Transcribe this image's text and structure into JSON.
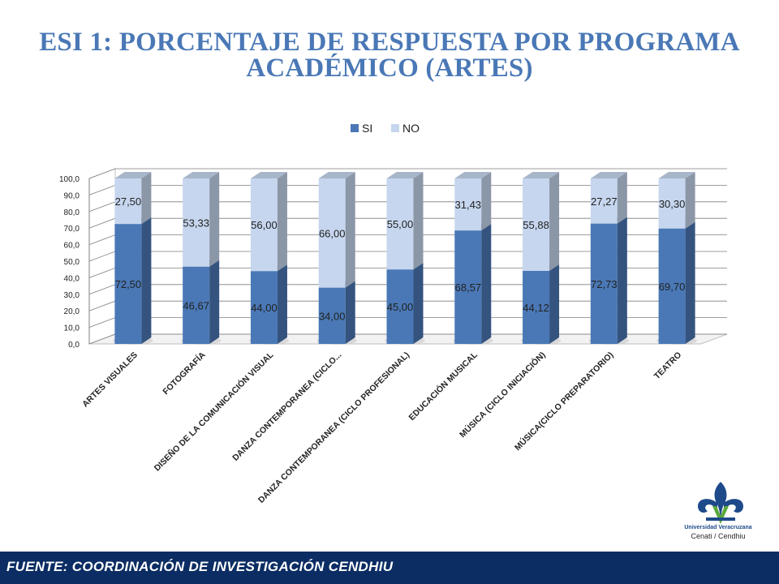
{
  "title": {
    "line1": "ESI  1: PORCENTAJE DE RESPUESTA POR PROGRAMA",
    "line2": "ACADÉMICO (ARTES)"
  },
  "footer": {
    "text": "FUENTE:  COORDINACIÓN DE   INVESTIGACIÓN CENDHIU"
  },
  "logo": {
    "name": "Universidad Veracruzana",
    "caption": "Cenati / Cendhiu",
    "icon": "fleur-de-lis-icon"
  },
  "colors": {
    "si": "#4a78b6",
    "no": "#c6d6ee",
    "title": "#4a78b6",
    "footer_bg": "#0b2d63"
  },
  "chart_data": {
    "type": "bar",
    "stacked": true,
    "three_d": true,
    "categories": [
      "ARTES VISUALES",
      "FOTOGRAFÍA",
      "DISEÑO DE LA COMUNICACIÓN VISUAL",
      "DANZA CONTEMPORANEA (CICLO...",
      "DANZA CONTEMPORANEA (CICLO PROFESIONAL)",
      "EDUCACIÓN MUSICAL",
      "MÚSICA (CICLO  INICIACIÓN)",
      "MÚSICA(CICLO PREPARATORIO)",
      "TEATRO"
    ],
    "series": [
      {
        "name": "SI",
        "values": [
          72.5,
          46.67,
          44.0,
          34.0,
          45.0,
          68.57,
          44.12,
          72.73,
          69.7
        ],
        "labels": [
          "72,50",
          "46,67",
          "44,00",
          "34,00",
          "45,00",
          "68,57",
          "44,12",
          "72,73",
          "69,70"
        ]
      },
      {
        "name": "NO",
        "values": [
          27.5,
          53.33,
          56.0,
          66.0,
          55.0,
          31.43,
          55.88,
          27.27,
          30.3
        ],
        "labels": [
          "27,50",
          "53,33",
          "56,00",
          "66,00",
          "55,00",
          "31,43",
          "55,88",
          "27,27",
          "30,30"
        ]
      }
    ],
    "ylim": [
      0,
      100
    ],
    "yticks": [
      "0,0",
      "10,0",
      "20,0",
      "30,0",
      "40,0",
      "50,0",
      "60,0",
      "70,0",
      "80,0",
      "90,0",
      "100,0"
    ],
    "grid": true,
    "legend": "top"
  }
}
